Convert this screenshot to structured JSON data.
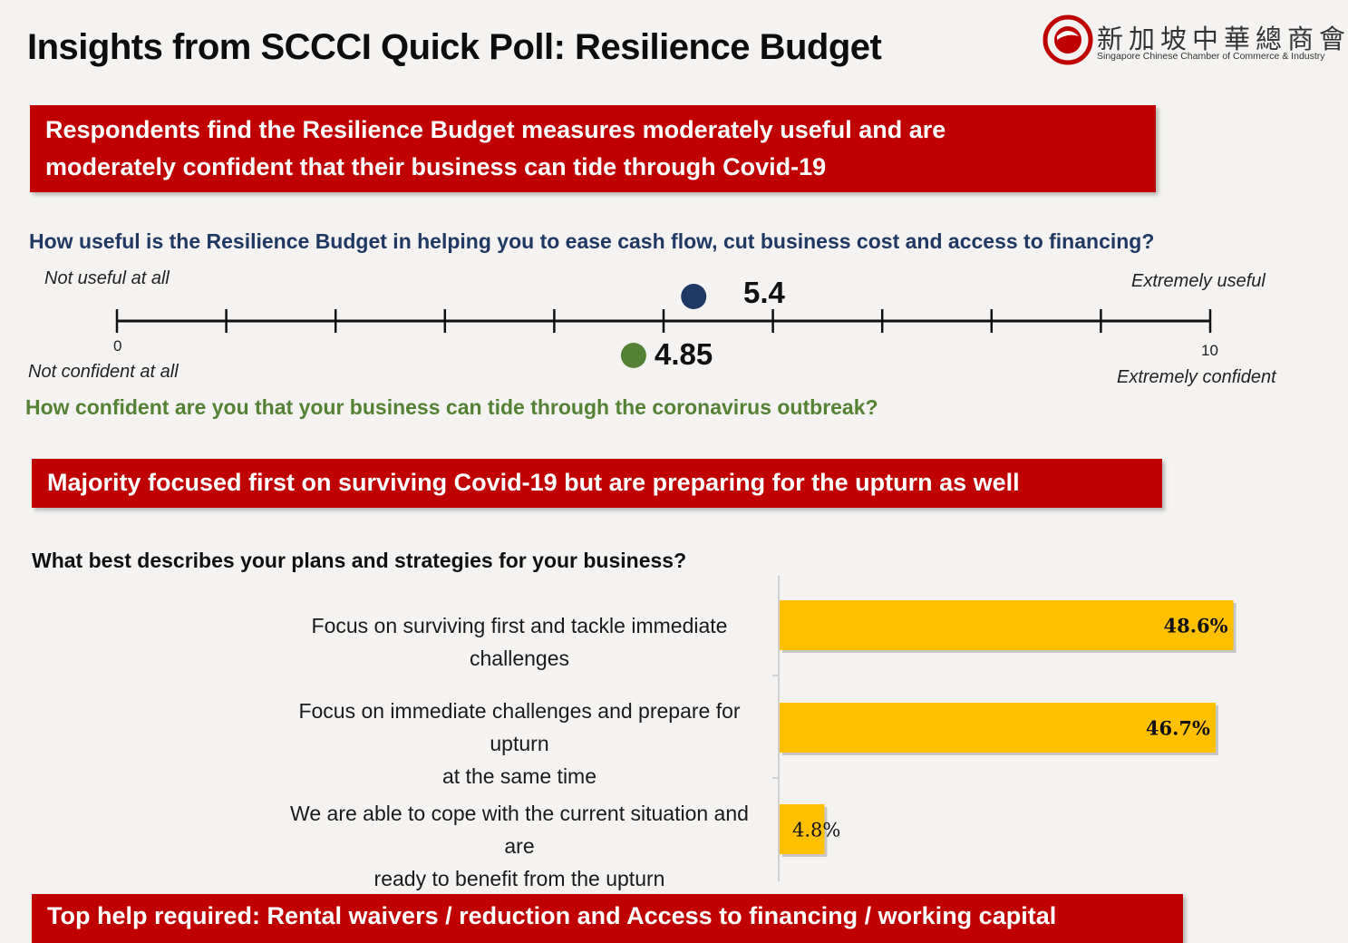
{
  "header": {
    "title": "Insights from SCCCI Quick Poll: Resilience Budget",
    "logo_chinese": "新加坡中華總商會",
    "logo_english": "Singapore Chinese Chamber of Commerce & Industry"
  },
  "banners": {
    "usefulness_finding": [
      "Respondents find the Resilience Budget measures moderately useful and are",
      "moderately confident that their business can tide through Covid-19"
    ],
    "plans_finding": "Majority focused first on surviving Covid-19 but are preparing for the upturn as well",
    "help_finding": "Top help required: Rental waivers / reduction and Access to financing / working capital"
  },
  "colors": {
    "banner_red": "#c00000",
    "useful_navy": "#1f3864",
    "confident_green": "#548235",
    "bar_gold": "#ffc000"
  },
  "scale": {
    "question_useful": "How useful is the Resilience Budget in helping you to ease cash flow, cut business cost and access to financing?",
    "question_confident": "How confident are you that your business can tide through the coronavirus outbreak?",
    "label_not_useful": "Not useful at all",
    "label_extremely_useful": "Extremely useful",
    "label_not_confident": "Not confident at all",
    "label_extremely_confident": "Extremely confident",
    "min_label": "0",
    "max_label": "10"
  },
  "plans": {
    "question": "What best describes your plans and strategies for your business?"
  },
  "chart_data": [
    {
      "type": "scatter",
      "xlim": [
        0,
        10
      ],
      "ticks": [
        0,
        1,
        2,
        3,
        4,
        5,
        6,
        7,
        8,
        9,
        10
      ],
      "series": [
        {
          "value": 5.4,
          "label": "5.4",
          "color": "#1f3864"
        },
        {
          "value": 4.85,
          "label": "4.85",
          "color": "#548235"
        }
      ]
    },
    {
      "type": "bar",
      "orientation": "horizontal",
      "categories": [
        [
          "Focus on surviving first and tackle immediate challenges"
        ],
        [
          "Focus on immediate challenges and prepare for upturn",
          "at the same time"
        ],
        [
          "We are able to cope with the current situation and are",
          "ready to benefit from the upturn"
        ]
      ],
      "values": [
        48.6,
        46.7,
        4.8
      ],
      "value_labels": [
        "48.6%",
        "46.7%",
        "4.8%"
      ],
      "unit": "%",
      "color": "#ffc000"
    }
  ]
}
